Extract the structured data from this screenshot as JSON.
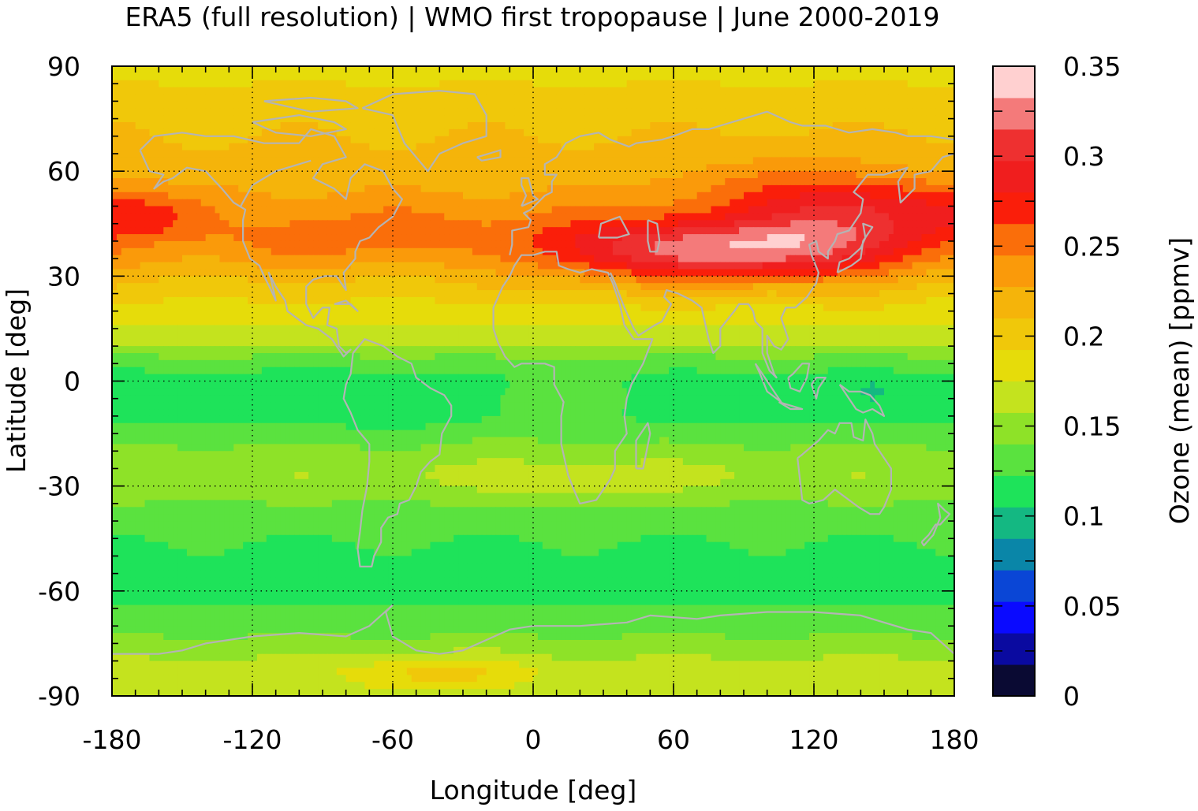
{
  "title": "ERA5 (full resolution) | WMO first tropopause | June 2000-2019",
  "chart_data": {
    "type": "heatmap",
    "title": "ERA5 (full resolution) | WMO first tropopause | June 2000-2019",
    "xlabel": "Longitude [deg]",
    "ylabel": "Latitude [deg]",
    "colorbar_label": "Ozone (mean) [ppmv]",
    "xlim": [
      -180,
      180
    ],
    "ylim": [
      -90,
      90
    ],
    "x_ticks": [
      "-180",
      "-120",
      "-60",
      "0",
      "60",
      "120",
      "180"
    ],
    "y_ticks": [
      "90",
      "60",
      "30",
      "0",
      "-30",
      "-60",
      "-90"
    ],
    "colorbar_range": [
      0,
      0.35
    ],
    "colorbar_ticks": [
      "0.35",
      "0.3",
      "0.25",
      "0.2",
      "0.15",
      "0.1",
      "0.05",
      "0"
    ],
    "grid": true,
    "colormap_levels": [
      {
        "min": 0.0,
        "max": 0.0175,
        "color": "#0a0a33"
      },
      {
        "min": 0.0175,
        "max": 0.035,
        "color": "#0a0aa0"
      },
      {
        "min": 0.035,
        "max": 0.0525,
        "color": "#0a0aff"
      },
      {
        "min": 0.0525,
        "max": 0.07,
        "color": "#0a46d6"
      },
      {
        "min": 0.07,
        "max": 0.0875,
        "color": "#0a86a8"
      },
      {
        "min": 0.0875,
        "max": 0.105,
        "color": "#14b882"
      },
      {
        "min": 0.105,
        "max": 0.1225,
        "color": "#1ee35a"
      },
      {
        "min": 0.1225,
        "max": 0.14,
        "color": "#5ae23f"
      },
      {
        "min": 0.14,
        "max": 0.1575,
        "color": "#8ee228"
      },
      {
        "min": 0.1575,
        "max": 0.175,
        "color": "#c4e31e"
      },
      {
        "min": 0.175,
        "max": 0.1925,
        "color": "#e6dc0a"
      },
      {
        "min": 0.1925,
        "max": 0.21,
        "color": "#f0c80a"
      },
      {
        "min": 0.21,
        "max": 0.2275,
        "color": "#f5b40a"
      },
      {
        "min": 0.2275,
        "max": 0.245,
        "color": "#fa9a0a"
      },
      {
        "min": 0.245,
        "max": 0.2625,
        "color": "#fa6e0a"
      },
      {
        "min": 0.2625,
        "max": 0.28,
        "color": "#fa1e0a"
      },
      {
        "min": 0.28,
        "max": 0.2975,
        "color": "#f01e1e"
      },
      {
        "min": 0.2975,
        "max": 0.315,
        "color": "#ee3030"
      },
      {
        "min": 0.315,
        "max": 0.3325,
        "color": "#f47a7a"
      },
      {
        "min": 0.3325,
        "max": 0.35,
        "color": "#ffd0d0"
      }
    ],
    "coastline_color": "#b4b4b4",
    "lat_profile": [
      {
        "lat": 90,
        "value": 0.185
      },
      {
        "lat": 80,
        "value": 0.2
      },
      {
        "lat": 70,
        "value": 0.21
      },
      {
        "lat": 60,
        "value": 0.215
      },
      {
        "lat": 50,
        "value": 0.235
      },
      {
        "lat": 42,
        "value": 0.24
      },
      {
        "lat": 35,
        "value": 0.225
      },
      {
        "lat": 28,
        "value": 0.205
      },
      {
        "lat": 20,
        "value": 0.185
      },
      {
        "lat": 12,
        "value": 0.165
      },
      {
        "lat": 5,
        "value": 0.13
      },
      {
        "lat": 0,
        "value": 0.115
      },
      {
        "lat": -10,
        "value": 0.115
      },
      {
        "lat": -18,
        "value": 0.14
      },
      {
        "lat": -26,
        "value": 0.155
      },
      {
        "lat": -32,
        "value": 0.145
      },
      {
        "lat": -40,
        "value": 0.13
      },
      {
        "lat": -50,
        "value": 0.118
      },
      {
        "lat": -60,
        "value": 0.115
      },
      {
        "lat": -68,
        "value": 0.13
      },
      {
        "lat": -75,
        "value": 0.145
      },
      {
        "lat": -82,
        "value": 0.165
      },
      {
        "lat": -90,
        "value": 0.16
      }
    ],
    "anomalies": [
      {
        "lon": 75,
        "lat": 37,
        "rlon": 70,
        "rlat": 9,
        "amp": 0.095
      },
      {
        "lon": 130,
        "lat": 45,
        "rlon": 40,
        "rlat": 13,
        "amp": 0.045
      },
      {
        "lon": 160,
        "lat": 50,
        "rlon": 40,
        "rlat": 8,
        "amp": 0.025
      },
      {
        "lon": -165,
        "lat": 47,
        "rlon": 20,
        "rlat": 6,
        "amp": 0.025
      },
      {
        "lon": -100,
        "lat": 38,
        "rlon": 25,
        "rlat": 8,
        "amp": 0.02
      },
      {
        "lon": -55,
        "lat": 42,
        "rlon": 30,
        "rlat": 7,
        "amp": 0.015
      },
      {
        "lon": 100,
        "lat": 57,
        "rlon": 50,
        "rlat": 8,
        "amp": 0.02
      },
      {
        "lon": -50,
        "lat": -5,
        "rlon": 35,
        "rlat": 10,
        "amp": -0.01
      },
      {
        "lon": 20,
        "lat": -28,
        "rlon": 60,
        "rlat": 5,
        "amp": 0.02
      },
      {
        "lon": -40,
        "lat": -84,
        "rlon": 40,
        "rlat": 5,
        "amp": 0.035
      },
      {
        "lon": 0,
        "lat": -5,
        "rlon": 50,
        "rlat": 10,
        "amp": 0.015
      },
      {
        "lon": 145,
        "lat": -3,
        "rlon": 4,
        "rlat": 2,
        "amp": -0.02
      }
    ]
  }
}
